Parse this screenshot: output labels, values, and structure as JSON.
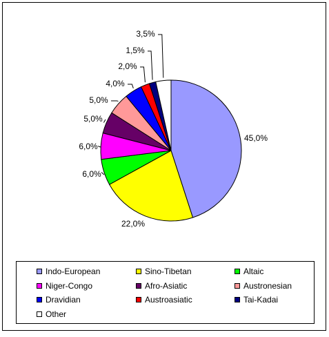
{
  "chart_data": {
    "type": "pie",
    "categories": [
      "Indo-European",
      "Sino-Tibetan",
      "Altaic",
      "Niger-Congo",
      "Afro-Asiatic",
      "Austronesian",
      "Dravidian",
      "Austroasiatic",
      "Tai-Kadai",
      "Other"
    ],
    "values": [
      45,
      22,
      6,
      6,
      5,
      5,
      4,
      2,
      1.5,
      3.5
    ],
    "value_labels": [
      "45,0%",
      "22,0%",
      "6,0%",
      "6,0%",
      "5,0%",
      "5,0%",
      "4,0%",
      "2,0%",
      "1,5%",
      "3,5%"
    ],
    "colors": [
      "#9999ff",
      "#ffff00",
      "#00ff00",
      "#ff00ff",
      "#660066",
      "#ff9999",
      "#0000ff",
      "#ff0000",
      "#000080",
      "#ffffff"
    ],
    "legend": "bottom"
  }
}
